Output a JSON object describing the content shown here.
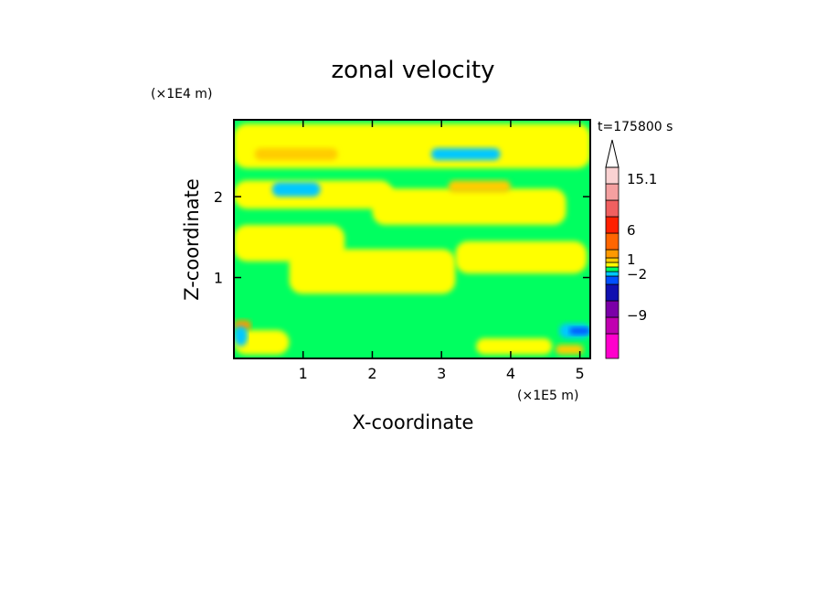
{
  "chart_data": {
    "type": "heatmap",
    "title": "zonal velocity",
    "xlabel": "X-coordinate",
    "ylabel": "Z-coordinate",
    "x_unit": "(×1E5 m)",
    "y_unit": "(×1E4 m)",
    "time_label": "t=175800 s",
    "xlim": [
      0,
      5.15
    ],
    "ylim": [
      0,
      2.95
    ],
    "x_ticks": [
      "1",
      "2",
      "3",
      "4",
      "5"
    ],
    "y_ticks": [
      "1",
      "2"
    ],
    "colorbar": {
      "tick_labels": [
        "15.1",
        "6",
        "1",
        "−2",
        "−9"
      ],
      "levels": [
        {
          "color": "#ff00cc"
        },
        {
          "color": "#c000b0"
        },
        {
          "color": "#7b00a8"
        },
        {
          "color": "#1010b0"
        },
        {
          "color": "#0050ff"
        },
        {
          "color": "#00c8ff"
        },
        {
          "color": "#00ff60"
        },
        {
          "color": "#ffff00"
        },
        {
          "color": "#ffcc00"
        },
        {
          "color": "#ff9900"
        },
        {
          "color": "#ff6600"
        },
        {
          "color": "#ff2000"
        },
        {
          "color": "#f06060"
        },
        {
          "color": "#f4a0a0"
        },
        {
          "color": "#fad2d2"
        }
      ]
    },
    "regions": [
      {
        "color": "#00ff60",
        "x": 0.0,
        "z": 0.0,
        "w": 5.15,
        "h": 2.95
      },
      {
        "color": "#ffff00",
        "x": 0.0,
        "z": 2.35,
        "w": 5.15,
        "h": 0.55
      },
      {
        "color": "#ffff00",
        "x": 0.0,
        "z": 1.85,
        "w": 2.3,
        "h": 0.35
      },
      {
        "color": "#ffff00",
        "x": 2.0,
        "z": 1.65,
        "w": 2.8,
        "h": 0.45
      },
      {
        "color": "#ffff00",
        "x": 0.0,
        "z": 1.2,
        "w": 1.6,
        "h": 0.45
      },
      {
        "color": "#ffff00",
        "x": 0.8,
        "z": 0.8,
        "w": 2.4,
        "h": 0.55
      },
      {
        "color": "#ffff00",
        "x": 3.2,
        "z": 1.05,
        "w": 1.9,
        "h": 0.4
      },
      {
        "color": "#ffff00",
        "x": 0.0,
        "z": 0.05,
        "w": 0.8,
        "h": 0.3
      },
      {
        "color": "#ffff00",
        "x": 3.5,
        "z": 0.05,
        "w": 1.1,
        "h": 0.2
      },
      {
        "color": "#ffcc00",
        "x": 0.3,
        "z": 2.45,
        "w": 1.2,
        "h": 0.15
      },
      {
        "color": "#ffcc00",
        "x": 3.1,
        "z": 2.05,
        "w": 0.9,
        "h": 0.15
      },
      {
        "color": "#ffcc00",
        "x": 4.65,
        "z": 0.05,
        "w": 0.4,
        "h": 0.12
      },
      {
        "color": "#ff9900",
        "x": 0.0,
        "z": 0.35,
        "w": 0.25,
        "h": 0.12
      },
      {
        "color": "#00c8ff",
        "x": 2.85,
        "z": 2.45,
        "w": 1.0,
        "h": 0.15
      },
      {
        "color": "#00c8ff",
        "x": 0.55,
        "z": 2.0,
        "w": 0.7,
        "h": 0.18
      },
      {
        "color": "#00c8ff",
        "x": 0.0,
        "z": 0.15,
        "w": 0.2,
        "h": 0.25
      },
      {
        "color": "#00c8ff",
        "x": 4.7,
        "z": 0.25,
        "w": 0.45,
        "h": 0.18
      },
      {
        "color": "#0050ff",
        "x": 4.85,
        "z": 0.3,
        "w": 0.3,
        "h": 0.08
      }
    ]
  }
}
